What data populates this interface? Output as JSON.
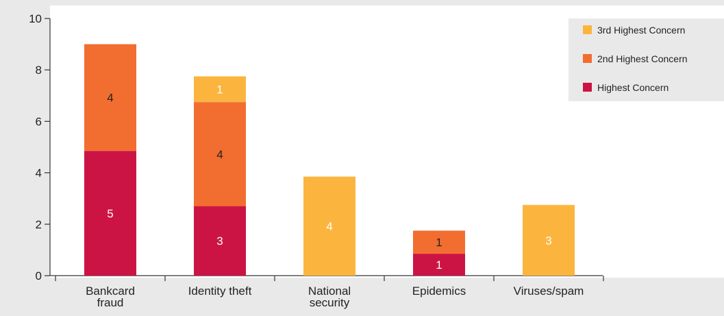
{
  "chart_data": {
    "type": "bar",
    "stacked": true,
    "categories": [
      [
        "Bankcard",
        "fraud"
      ],
      [
        "Identity theft"
      ],
      [
        "National",
        "security"
      ],
      [
        "Epidemics"
      ],
      [
        "Viruses/spam"
      ]
    ],
    "series": [
      {
        "name": "Highest Concern",
        "color": "#cc1444",
        "values": [
          5,
          3,
          0,
          1,
          0
        ]
      },
      {
        "name": "2nd Highest Concern",
        "color": "#f26d30",
        "values": [
          4,
          4,
          0,
          1,
          0
        ]
      },
      {
        "name": "3rd Highest Concern",
        "color": "#fbb53f",
        "values": [
          0,
          1,
          4,
          0,
          3
        ]
      }
    ],
    "plotted_totals": [
      9.0,
      7.75,
      3.85,
      1.75,
      2.75
    ],
    "segments_plotted": [
      [
        4.85,
        4.15,
        0
      ],
      [
        2.7,
        4.05,
        1.0
      ],
      [
        0,
        0,
        3.85
      ],
      [
        0.85,
        0.9,
        0
      ],
      [
        0,
        0,
        2.75
      ]
    ],
    "ylim": [
      0,
      10
    ],
    "yticks": [
      0,
      2,
      4,
      6,
      8,
      10
    ],
    "legend_placement": "top-right",
    "legend_order": [
      "3rd Highest Concern",
      "2nd Highest Concern",
      "Highest Concern"
    ],
    "grid": false,
    "xlabel": "",
    "ylabel": "",
    "title": ""
  },
  "colors": {
    "background": "#e9e9ea",
    "plot_background": "#ffffff",
    "legend_background": "#e9e9ea",
    "axis": "#333333"
  }
}
